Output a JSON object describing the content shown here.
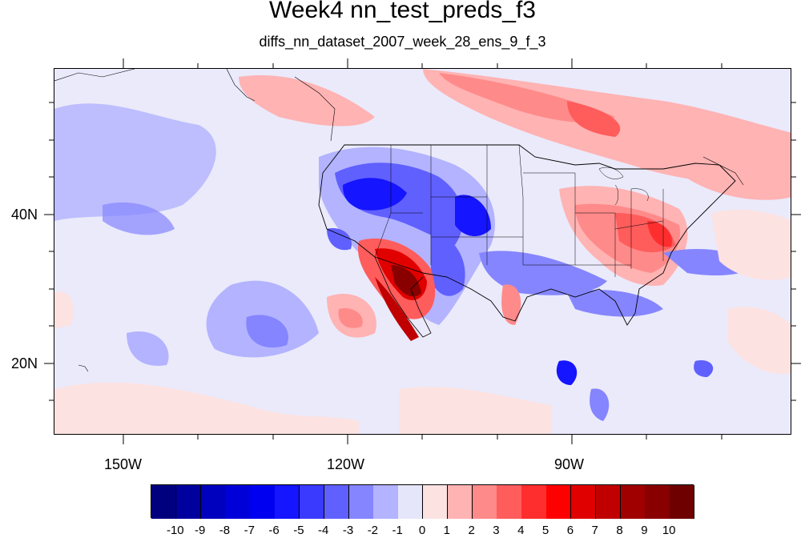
{
  "title": "Week4 nn_test_preds_f3",
  "subtitle": "diffs_nn_dataset_2007_week_28_ens_9_f_3",
  "lon_labels": [
    "150W",
    "120W",
    "90W"
  ],
  "lat_labels": [
    "40N",
    "20N"
  ],
  "colorbar": {
    "labels": [
      "-10",
      "-9",
      "-8",
      "-7",
      "-6",
      "-5",
      "-4",
      "-3",
      "-2",
      "-1",
      "0",
      "1",
      "2",
      "3",
      "4",
      "5",
      "6",
      "7",
      "8",
      "9",
      "10"
    ],
    "colors": [
      "#00007f",
      "#00009f",
      "#0000bf",
      "#0000d8",
      "#0000f0",
      "#1515ff",
      "#3a3aff",
      "#6060ff",
      "#8585ff",
      "#b3b3ff",
      "#e6e6fa",
      "#fde2e2",
      "#ffb3b3",
      "#ff8a8a",
      "#ff5c5c",
      "#ff2e2e",
      "#ff0000",
      "#e00000",
      "#c00000",
      "#a00000",
      "#880000",
      "#6e0000"
    ]
  }
}
